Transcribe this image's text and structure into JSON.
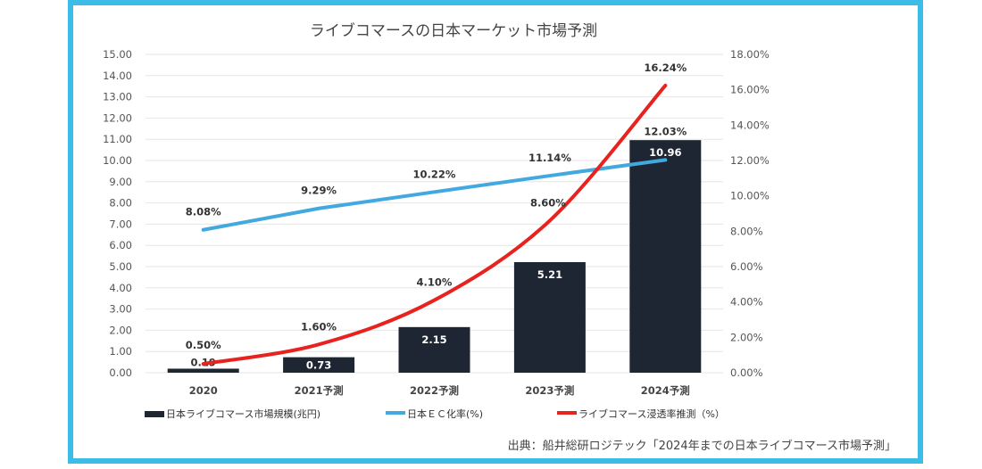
{
  "chart_data": {
    "type": "bar+line",
    "title": "ライブコマースの日本マーケット市場予測",
    "categories": [
      "2020",
      "2021予測",
      "2022予測",
      "2023予測",
      "2024予測"
    ],
    "series": [
      {
        "name": "日本ライブコマース市場規模(兆円)",
        "type": "bar",
        "axis": "left",
        "color": "#1f2633",
        "values": [
          0.19,
          0.73,
          2.15,
          5.21,
          10.96
        ],
        "labels": [
          "0.19",
          "0.73",
          "2.15",
          "5.21",
          "10.96"
        ]
      },
      {
        "name": "日本ＥＣ化率(%)",
        "type": "line",
        "axis": "right",
        "color": "#41a9e0",
        "values": [
          8.08,
          9.29,
          10.22,
          11.14,
          12.03
        ],
        "labels": [
          "8.08%",
          "9.29%",
          "10.22%",
          "11.14%",
          "12.03%"
        ]
      },
      {
        "name": "ライブコマース浸透率推測（%）",
        "type": "line",
        "axis": "right",
        "color": "#e8231f",
        "values": [
          0.5,
          1.6,
          4.1,
          8.6,
          16.24
        ],
        "labels": [
          "0.50%",
          "1.60%",
          "4.10%",
          "8.60%",
          "16.24%"
        ]
      }
    ],
    "left_axis": {
      "ylim": [
        0,
        15
      ],
      "ticks": [
        "0.00",
        "1.00",
        "2.00",
        "3.00",
        "4.00",
        "5.00",
        "6.00",
        "7.00",
        "8.00",
        "9.00",
        "10.00",
        "11.00",
        "12.00",
        "13.00",
        "14.00",
        "15.00"
      ]
    },
    "right_axis": {
      "ylim": [
        0,
        18
      ],
      "ticks": [
        "0.00%",
        "2.00%",
        "4.00%",
        "6.00%",
        "8.00%",
        "10.00%",
        "12.00%",
        "14.00%",
        "16.00%",
        "18.00%"
      ]
    },
    "grid": true,
    "legend_position": "bottom",
    "source": "出典：船井総研ロジテック「2024年までの日本ライブコマース市場予測」"
  },
  "frame_color": "#3bbde8"
}
